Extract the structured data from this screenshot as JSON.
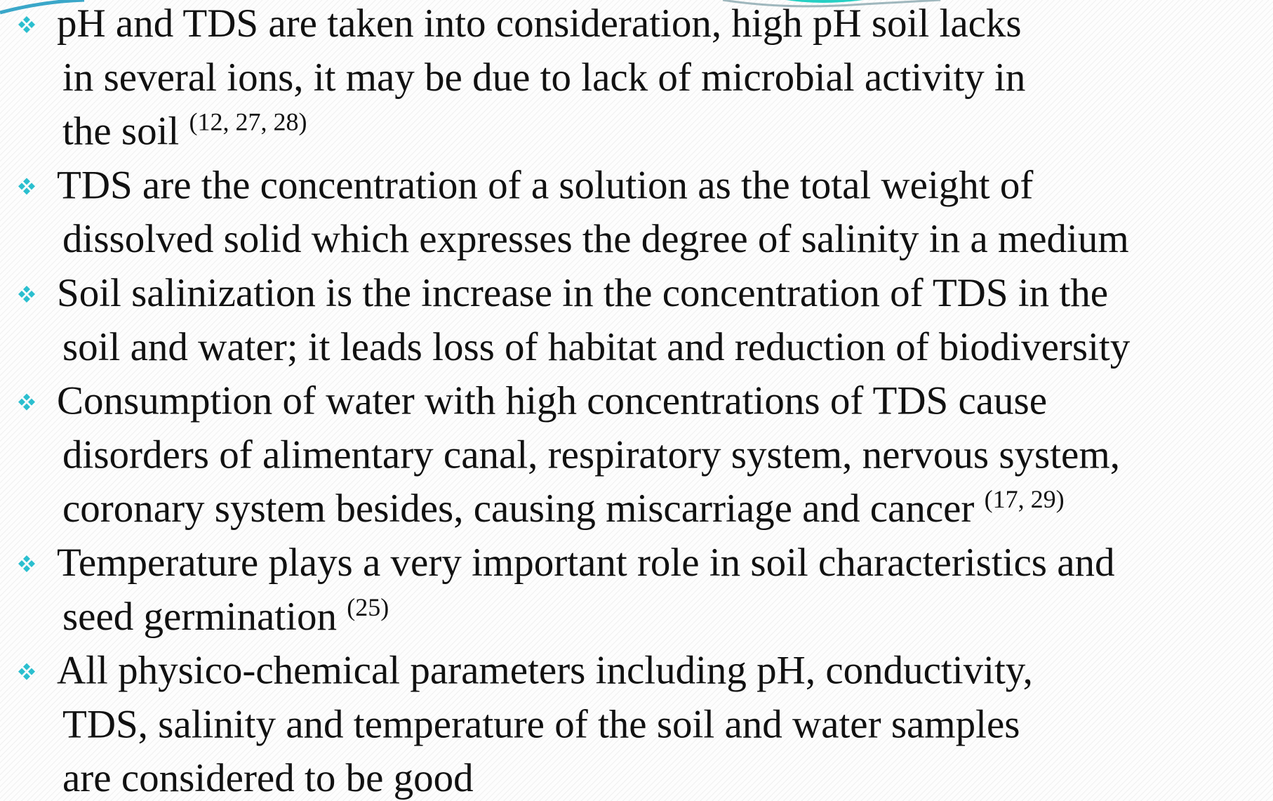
{
  "bullets": [
    {
      "lines": [
        "pH and TDS are taken into consideration, high pH soil lacks",
        "in several ions, it may be due to lack of microbial activity in",
        "the soil"
      ],
      "citation": "(12, 27, 28)"
    },
    {
      "lines": [
        "TDS are the concentration of a solution as the total weight of",
        "dissolved solid which expresses the degree of salinity in a medium"
      ]
    },
    {
      "lines": [
        "Soil salinization is the increase in the concentration of TDS in the",
        "soil and water; it leads loss of habitat and reduction of biodiversity"
      ]
    },
    {
      "lines": [
        "Consumption of water with high concentrations of TDS cause",
        "disorders of alimentary canal, respiratory system, nervous system,",
        "coronary system besides, causing miscarriage and cancer"
      ],
      "citation": "(17, 29)"
    },
    {
      "lines": [
        "Temperature plays a very important role in soil characteristics and",
        "seed germination"
      ],
      "citation": "(25)"
    },
    {
      "lines": [
        "All physico-chemical parameters including pH, conductivity,",
        "TDS, salinity and temperature of the soil and water samples",
        "are considered to be good"
      ]
    }
  ]
}
